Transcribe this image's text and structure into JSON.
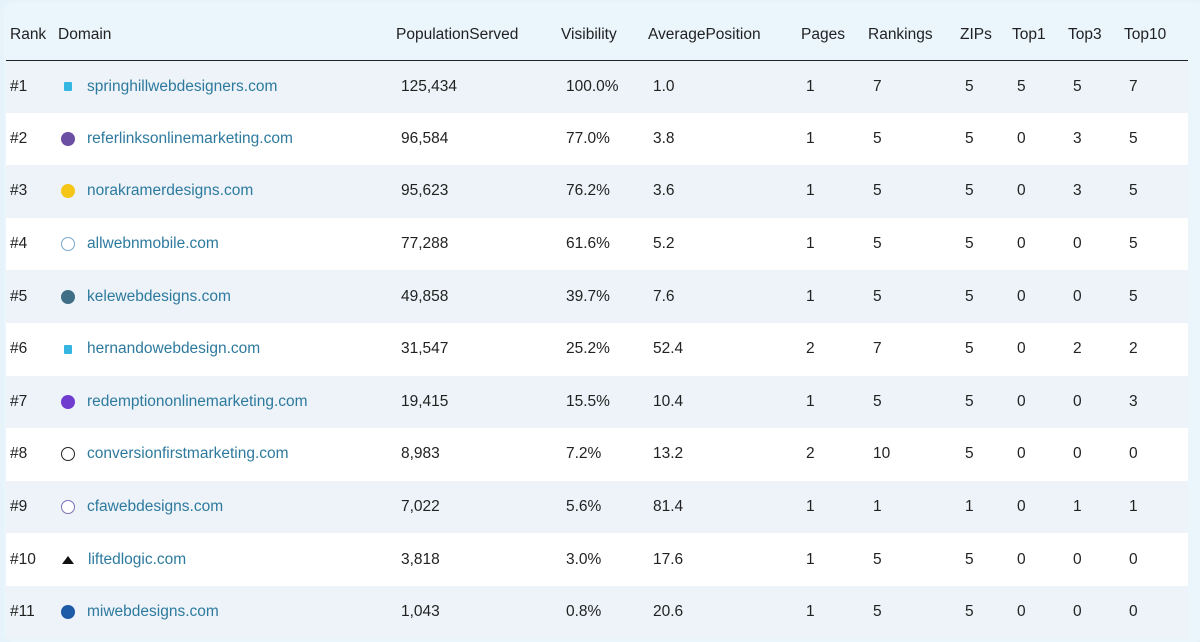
{
  "headers": [
    "Rank",
    "Domain",
    "PopulationServed",
    "Visibility",
    "AveragePosition",
    "Pages",
    "Rankings",
    "ZIPs",
    "Top1",
    "Top3",
    "Top10"
  ],
  "rows": [
    {
      "rank": "#1",
      "domain": "springhillwebdesigners.com",
      "icon": "flag-icon",
      "icon_color": "#35b6e0",
      "pop": "125,434",
      "vis": "100.0%",
      "avg": "1.0",
      "pages": "1",
      "rankings": "7",
      "zips": "5",
      "top1": "5",
      "top3": "5",
      "top10": "7"
    },
    {
      "rank": "#2",
      "domain": "referlinksonlinemarketing.com",
      "icon": "rl-logo-icon",
      "icon_color": "#6a4fa3",
      "pop": "96,584",
      "vis": "77.0%",
      "avg": "3.8",
      "pages": "1",
      "rankings": "5",
      "zips": "5",
      "top1": "0",
      "top3": "3",
      "top10": "5"
    },
    {
      "rank": "#3",
      "domain": "norakramerdesigns.com",
      "icon": "signal-logo-icon",
      "icon_color": "#f5c518",
      "pop": "95,623",
      "vis": "76.2%",
      "avg": "3.6",
      "pages": "1",
      "rankings": "5",
      "zips": "5",
      "top1": "0",
      "top3": "3",
      "top10": "5"
    },
    {
      "rank": "#4",
      "domain": "allwebnmobile.com",
      "icon": "broadcast-icon",
      "icon_color": "#7aa7c7",
      "pop": "77,288",
      "vis": "61.6%",
      "avg": "5.2",
      "pages": "1",
      "rankings": "5",
      "zips": "5",
      "top1": "0",
      "top3": "0",
      "top10": "5"
    },
    {
      "rank": "#5",
      "domain": "kelewebdesigns.com",
      "icon": "gear-logo-icon",
      "icon_color": "#3e6f86",
      "pop": "49,858",
      "vis": "39.7%",
      "avg": "7.6",
      "pages": "1",
      "rankings": "5",
      "zips": "5",
      "top1": "0",
      "top3": "0",
      "top10": "5"
    },
    {
      "rank": "#6",
      "domain": "hernandowebdesign.com",
      "icon": "flag-icon",
      "icon_color": "#35b6e0",
      "pop": "31,547",
      "vis": "25.2%",
      "avg": "52.4",
      "pages": "2",
      "rankings": "7",
      "zips": "5",
      "top1": "0",
      "top3": "2",
      "top10": "2"
    },
    {
      "rank": "#7",
      "domain": "redemptiononlinemarketing.com",
      "icon": "purple-logo-icon",
      "icon_color": "#6f3ccf",
      "pop": "19,415",
      "vis": "15.5%",
      "avg": "10.4",
      "pages": "1",
      "rankings": "5",
      "zips": "5",
      "top1": "0",
      "top3": "0",
      "top10": "3"
    },
    {
      "rank": "#8",
      "domain": "conversionfirstmarketing.com",
      "icon": "circle-logo-icon",
      "icon_color": "#222222",
      "pop": "8,983",
      "vis": "7.2%",
      "avg": "13.2",
      "pages": "2",
      "rankings": "10",
      "zips": "5",
      "top1": "0",
      "top3": "0",
      "top10": "0"
    },
    {
      "rank": "#9",
      "domain": "cfawebdesigns.com",
      "icon": "globe-icon",
      "icon_color": "#7b72b8",
      "pop": "7,022",
      "vis": "5.6%",
      "avg": "81.4",
      "pages": "1",
      "rankings": "1",
      "zips": "1",
      "top1": "0",
      "top3": "1",
      "top10": "1"
    },
    {
      "rank": "#10",
      "domain": "liftedlogic.com",
      "icon": "triangle-logo-icon",
      "icon_color": "#111111",
      "pop": "3,818",
      "vis": "3.0%",
      "avg": "17.6",
      "pages": "1",
      "rankings": "5",
      "zips": "5",
      "top1": "0",
      "top3": "0",
      "top10": "0"
    },
    {
      "rank": "#11",
      "domain": "miwebdesigns.com",
      "icon": "m-logo-icon",
      "icon_color": "#1d5aa8",
      "pop": "1,043",
      "vis": "0.8%",
      "avg": "20.6",
      "pages": "1",
      "rankings": "5",
      "zips": "5",
      "top1": "0",
      "top3": "0",
      "top10": "0"
    }
  ]
}
